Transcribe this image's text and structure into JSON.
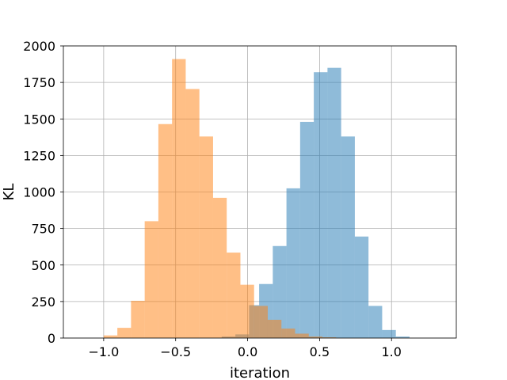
{
  "chart_data": {
    "type": "bar",
    "subtype": "overlapping-histogram",
    "title": "",
    "xlabel": "iteration",
    "ylabel": "KL",
    "xlim": [
      -1.28,
      1.45
    ],
    "ylim": [
      0,
      2000
    ],
    "grid": true,
    "legend": "none",
    "xticks": [
      -1.0,
      -0.5,
      0.0,
      0.5,
      1.0
    ],
    "xtick_labels": [
      "−1.0",
      "−0.5",
      "0.0",
      "0.5",
      "1.0"
    ],
    "yticks": [
      0,
      250,
      500,
      750,
      1000,
      1250,
      1500,
      1750,
      2000
    ],
    "ytick_labels": [
      "0",
      "250",
      "500",
      "750",
      "1000",
      "1250",
      "1500",
      "1750",
      "2000"
    ],
    "series": [
      {
        "color": "#1f77b4",
        "alpha": 0.5,
        "bins": [
          {
            "x0": -0.18,
            "x1": -0.085,
            "value": 10
          },
          {
            "x0": -0.085,
            "x1": 0.01,
            "value": 25
          },
          {
            "x0": 0.01,
            "x1": 0.08,
            "value": 225
          },
          {
            "x0": 0.08,
            "x1": 0.175,
            "value": 370
          },
          {
            "x0": 0.175,
            "x1": 0.27,
            "value": 630
          },
          {
            "x0": 0.27,
            "x1": 0.365,
            "value": 1025
          },
          {
            "x0": 0.365,
            "x1": 0.46,
            "value": 1480
          },
          {
            "x0": 0.46,
            "x1": 0.555,
            "value": 1820
          },
          {
            "x0": 0.555,
            "x1": 0.65,
            "value": 1850
          },
          {
            "x0": 0.65,
            "x1": 0.745,
            "value": 1380
          },
          {
            "x0": 0.745,
            "x1": 0.84,
            "value": 695
          },
          {
            "x0": 0.84,
            "x1": 0.935,
            "value": 220
          },
          {
            "x0": 0.935,
            "x1": 1.03,
            "value": 55
          },
          {
            "x0": 1.03,
            "x1": 1.125,
            "value": 10
          }
        ]
      },
      {
        "color": "#ff7f0e",
        "alpha": 0.5,
        "bins": [
          {
            "x0": -1.0,
            "x1": -0.905,
            "value": 18
          },
          {
            "x0": -0.905,
            "x1": -0.81,
            "value": 70
          },
          {
            "x0": -0.81,
            "x1": -0.715,
            "value": 255
          },
          {
            "x0": -0.715,
            "x1": -0.62,
            "value": 800
          },
          {
            "x0": -0.62,
            "x1": -0.525,
            "value": 1465
          },
          {
            "x0": -0.525,
            "x1": -0.43,
            "value": 1910
          },
          {
            "x0": -0.43,
            "x1": -0.335,
            "value": 1705
          },
          {
            "x0": -0.335,
            "x1": -0.24,
            "value": 1380
          },
          {
            "x0": -0.24,
            "x1": -0.145,
            "value": 960
          },
          {
            "x0": -0.145,
            "x1": -0.05,
            "value": 585
          },
          {
            "x0": -0.05,
            "x1": 0.045,
            "value": 365
          },
          {
            "x0": 0.045,
            "x1": 0.14,
            "value": 220
          },
          {
            "x0": 0.14,
            "x1": 0.235,
            "value": 125
          },
          {
            "x0": 0.235,
            "x1": 0.33,
            "value": 65
          },
          {
            "x0": 0.33,
            "x1": 0.425,
            "value": 30
          },
          {
            "x0": 0.425,
            "x1": 0.52,
            "value": 10
          },
          {
            "x0": 0.52,
            "x1": 0.615,
            "value": 5
          }
        ]
      }
    ]
  }
}
